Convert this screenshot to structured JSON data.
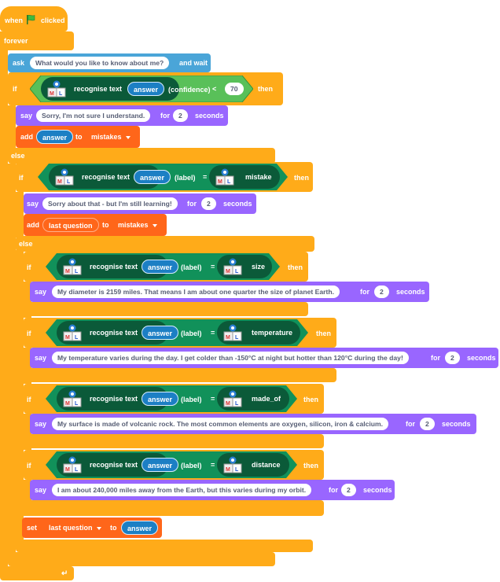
{
  "hat": {
    "when": "when",
    "clicked": "clicked"
  },
  "forever_label": "forever",
  "ask": {
    "label": "ask",
    "question": "What would you like to know about me?",
    "and_wait": "and wait"
  },
  "if1": {
    "if": "if",
    "recognise": "recognise text",
    "answer": "answer",
    "confidence": "(confidence)",
    "lt": "<",
    "threshold": "70",
    "then": "then",
    "say": "say",
    "say_text": "Sorry, I'm not sure I understand.",
    "for": "for",
    "secs": "2",
    "seconds": "seconds",
    "add": "add",
    "add_value": "answer",
    "to": "to",
    "list": "mistakes"
  },
  "else_label": "else",
  "if2": {
    "if": "if",
    "recognise": "recognise text",
    "answer": "answer",
    "label": "(label)",
    "eq": "=",
    "class": "mistake",
    "then": "then",
    "say": "say",
    "say_text": "Sorry about that - but I'm still learning!",
    "for": "for",
    "secs": "2",
    "seconds": "seconds",
    "add": "add",
    "add_value": "last question",
    "to": "to",
    "list": "mistakes"
  },
  "if3": {
    "if": "if",
    "recognise": "recognise text",
    "answer": "answer",
    "label": "(label)",
    "eq": "=",
    "class": "size",
    "then": "then",
    "say": "say",
    "say_text": "My diameter is 2159 miles. That means I am about one quarter the size of planet Earth.",
    "for": "for",
    "secs": "2",
    "seconds": "seconds"
  },
  "if4": {
    "if": "if",
    "recognise": "recognise text",
    "answer": "answer",
    "label": "(label)",
    "eq": "=",
    "class": "temperature",
    "then": "then",
    "say": "say",
    "say_text": "My temperature varies during the day. I get colder than -150°C at night but hotter than 120°C during the day!",
    "for": "for",
    "secs": "2",
    "seconds": "seconds"
  },
  "if5": {
    "if": "if",
    "recognise": "recognise text",
    "answer": "answer",
    "label": "(label)",
    "eq": "=",
    "class": "made_of",
    "then": "then",
    "say": "say",
    "say_text": "My surface is made of volcanic rock. The most common elements are oxygen, silicon, iron & calcium.",
    "for": "for",
    "secs": "2",
    "seconds": "seconds"
  },
  "if6": {
    "if": "if",
    "recognise": "recognise text",
    "answer": "answer",
    "label": "(label)",
    "eq": "=",
    "class": "distance",
    "then": "then",
    "say": "say",
    "say_text": "I am about 240,000 miles away from the Earth, but this varies during my orbit.",
    "for": "for",
    "secs": "2",
    "seconds": "seconds"
  },
  "set": {
    "label": "set",
    "variable": "last question",
    "to": "to",
    "value": "answer"
  },
  "ml_icon": {
    "top": "ML",
    "letters": "M L"
  },
  "colors": {
    "events": "#ffab19",
    "control": "#ffab19",
    "looks": "#9966ff",
    "sensing": "#4aa5d8",
    "list": "#ff661a",
    "ml": "#0b5a39",
    "ml_hex": "#11915a",
    "answer": "#1c7fc4"
  }
}
